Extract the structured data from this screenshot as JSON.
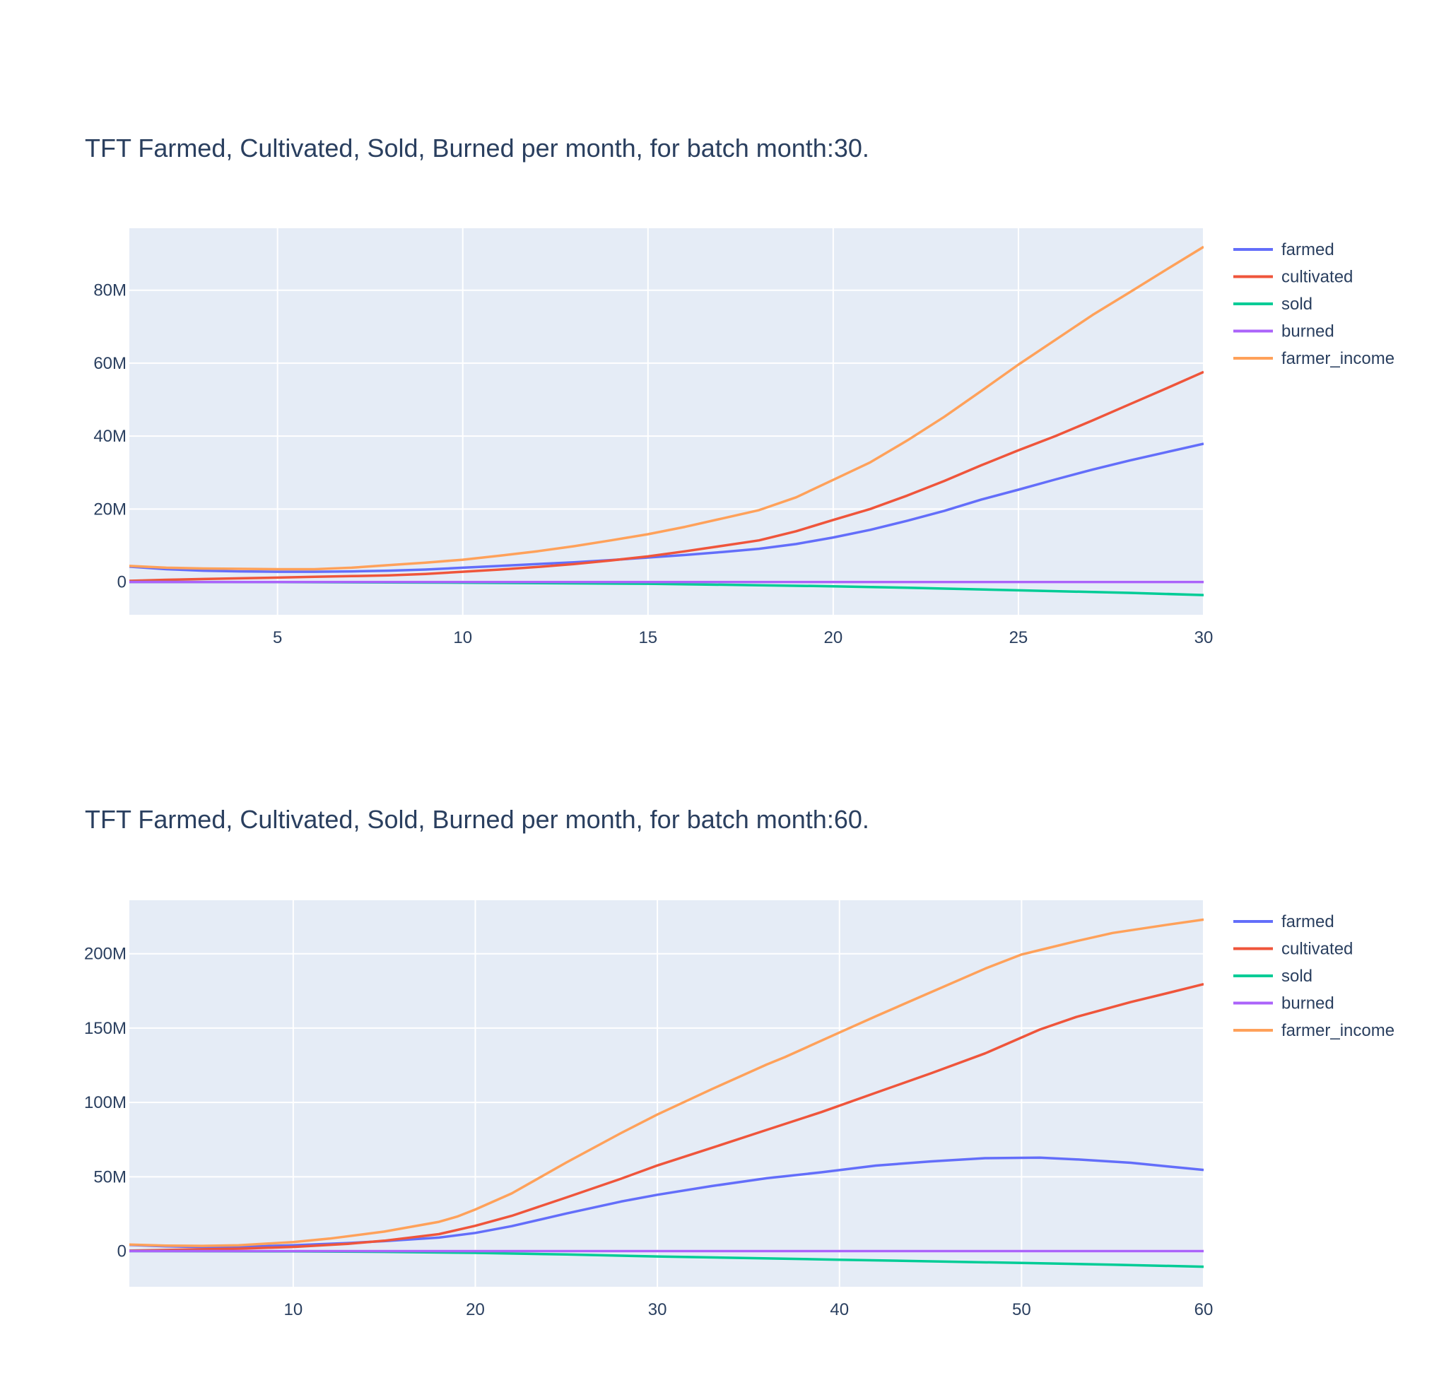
{
  "chart_data": [
    {
      "type": "line",
      "title": "TFT Farmed, Cultivated, Sold, Burned per month, for batch month:30.",
      "xlabel": "",
      "ylabel": "",
      "xlim": [
        1,
        30
      ],
      "ylim": [
        -9000000,
        97000000
      ],
      "xticks": [
        5,
        10,
        15,
        20,
        25,
        30
      ],
      "yticks": [
        0,
        20000000,
        40000000,
        60000000,
        80000000
      ],
      "ytick_labels": [
        "0",
        "20M",
        "40M",
        "60M",
        "80M"
      ],
      "legend": "top-right",
      "grid": true,
      "series": [
        {
          "name": "farmed",
          "color": "#636efa",
          "points": [
            [
              1,
              4200000
            ],
            [
              2,
              3500000
            ],
            [
              3,
              3100000
            ],
            [
              4,
              2900000
            ],
            [
              5,
              2800000
            ],
            [
              6,
              2800000
            ],
            [
              7,
              2900000
            ],
            [
              8,
              3100000
            ],
            [
              9,
              3400000
            ],
            [
              10,
              3900000
            ],
            [
              11,
              4400000
            ],
            [
              12,
              4900000
            ],
            [
              13,
              5400000
            ],
            [
              14,
              6000000
            ],
            [
              15,
              6700000
            ],
            [
              16,
              7400000
            ],
            [
              17,
              8200000
            ],
            [
              18,
              9100000
            ],
            [
              19,
              10400000
            ],
            [
              20,
              12200000
            ],
            [
              21,
              14300000
            ],
            [
              22,
              16800000
            ],
            [
              23,
              19500000
            ],
            [
              24,
              22600000
            ],
            [
              25,
              25300000
            ],
            [
              26,
              28100000
            ],
            [
              27,
              30800000
            ],
            [
              28,
              33300000
            ],
            [
              29,
              35600000
            ],
            [
              30,
              37900000
            ]
          ]
        },
        {
          "name": "cultivated",
          "color": "#ef553b",
          "points": [
            [
              1,
              300000
            ],
            [
              2,
              600000
            ],
            [
              3,
              800000
            ],
            [
              4,
              1000000
            ],
            [
              5,
              1200000
            ],
            [
              6,
              1400000
            ],
            [
              7,
              1600000
            ],
            [
              8,
              1800000
            ],
            [
              9,
              2200000
            ],
            [
              10,
              2800000
            ],
            [
              11,
              3400000
            ],
            [
              12,
              4100000
            ],
            [
              13,
              4900000
            ],
            [
              14,
              5900000
            ],
            [
              15,
              7000000
            ],
            [
              16,
              8400000
            ],
            [
              17,
              9900000
            ],
            [
              18,
              11400000
            ],
            [
              19,
              13900000
            ],
            [
              20,
              17000000
            ],
            [
              21,
              20000000
            ],
            [
              22,
              23700000
            ],
            [
              23,
              27700000
            ],
            [
              24,
              32000000
            ],
            [
              25,
              36100000
            ],
            [
              26,
              40000000
            ],
            [
              27,
              44300000
            ],
            [
              28,
              48700000
            ],
            [
              29,
              53100000
            ],
            [
              30,
              57600000
            ]
          ]
        },
        {
          "name": "sold",
          "color": "#00cc96",
          "points": [
            [
              1,
              0
            ],
            [
              5,
              -50000
            ],
            [
              10,
              -200000
            ],
            [
              15,
              -500000
            ],
            [
              18,
              -900000
            ],
            [
              20,
              -1200000
            ],
            [
              22,
              -1600000
            ],
            [
              25,
              -2300000
            ],
            [
              28,
              -3000000
            ],
            [
              30,
              -3600000
            ]
          ]
        },
        {
          "name": "burned",
          "color": "#ab63fa",
          "points": [
            [
              1,
              0
            ],
            [
              30,
              0
            ]
          ]
        },
        {
          "name": "farmer_income",
          "color": "#ffa15a",
          "points": [
            [
              1,
              4400000
            ],
            [
              2,
              3900000
            ],
            [
              3,
              3700000
            ],
            [
              4,
              3600000
            ],
            [
              5,
              3500000
            ],
            [
              6,
              3500000
            ],
            [
              7,
              3900000
            ],
            [
              8,
              4600000
            ],
            [
              9,
              5300000
            ],
            [
              10,
              6100000
            ],
            [
              11,
              7200000
            ],
            [
              12,
              8400000
            ],
            [
              13,
              9800000
            ],
            [
              14,
              11400000
            ],
            [
              15,
              13100000
            ],
            [
              16,
              15100000
            ],
            [
              17,
              17400000
            ],
            [
              18,
              19700000
            ],
            [
              19,
              23200000
            ],
            [
              20,
              28000000
            ],
            [
              21,
              32800000
            ],
            [
              22,
              38800000
            ],
            [
              23,
              45300000
            ],
            [
              24,
              52400000
            ],
            [
              25,
              59600000
            ],
            [
              26,
              66400000
            ],
            [
              27,
              73200000
            ],
            [
              28,
              79400000
            ],
            [
              29,
              85700000
            ],
            [
              30,
              91900000
            ]
          ]
        }
      ]
    },
    {
      "type": "line",
      "title": "TFT Farmed, Cultivated, Sold, Burned per month, for batch month:60.",
      "xlabel": "",
      "ylabel": "",
      "xlim": [
        1,
        60
      ],
      "ylim": [
        -24000000,
        236000000
      ],
      "xticks": [
        10,
        20,
        30,
        40,
        50,
        60
      ],
      "yticks": [
        0,
        50000000,
        100000000,
        150000000,
        200000000
      ],
      "ytick_labels": [
        "0",
        "50M",
        "100M",
        "150M",
        "200M"
      ],
      "legend": "top-right",
      "grid": true,
      "series": [
        {
          "name": "farmed",
          "color": "#636efa",
          "points": [
            [
              1,
              4200000
            ],
            [
              3,
              3200000
            ],
            [
              5,
              2800000
            ],
            [
              7,
              2900000
            ],
            [
              10,
              3900000
            ],
            [
              13,
              5400000
            ],
            [
              15,
              6700000
            ],
            [
              18,
              9100000
            ],
            [
              20,
              12200000
            ],
            [
              22,
              16800000
            ],
            [
              25,
              25300000
            ],
            [
              28,
              33300000
            ],
            [
              30,
              37900000
            ],
            [
              33,
              43800000
            ],
            [
              36,
              49000000
            ],
            [
              39,
              53000000
            ],
            [
              42,
              57500000
            ],
            [
              45,
              60300000
            ],
            [
              48,
              62500000
            ],
            [
              51,
              62900000
            ],
            [
              53,
              61700000
            ],
            [
              56,
              59400000
            ],
            [
              58,
              57000000
            ],
            [
              60,
              54600000
            ]
          ]
        },
        {
          "name": "cultivated",
          "color": "#ef553b",
          "points": [
            [
              1,
              300000
            ],
            [
              4,
              1000000
            ],
            [
              7,
              1600000
            ],
            [
              10,
              2800000
            ],
            [
              13,
              4900000
            ],
            [
              15,
              7000000
            ],
            [
              18,
              11400000
            ],
            [
              20,
              17000000
            ],
            [
              22,
              23700000
            ],
            [
              25,
              36100000
            ],
            [
              28,
              48700000
            ],
            [
              30,
              57600000
            ],
            [
              33,
              69500000
            ],
            [
              36,
              81500000
            ],
            [
              39,
              93500000
            ],
            [
              42,
              106500000
            ],
            [
              45,
              119500000
            ],
            [
              48,
              133000000
            ],
            [
              51,
              149000000
            ],
            [
              53,
              157500000
            ],
            [
              56,
              167500000
            ],
            [
              58,
              173500000
            ],
            [
              60,
              179600000
            ]
          ]
        },
        {
          "name": "sold",
          "color": "#00cc96",
          "points": [
            [
              1,
              0
            ],
            [
              10,
              -200000
            ],
            [
              15,
              -500000
            ],
            [
              20,
              -1200000
            ],
            [
              25,
              -2300000
            ],
            [
              30,
              -3600000
            ],
            [
              35,
              -4700000
            ],
            [
              40,
              -5800000
            ],
            [
              45,
              -6900000
            ],
            [
              50,
              -8000000
            ],
            [
              55,
              -9100000
            ],
            [
              60,
              -10500000
            ]
          ]
        },
        {
          "name": "burned",
          "color": "#ab63fa",
          "points": [
            [
              1,
              0
            ],
            [
              60,
              0
            ]
          ]
        },
        {
          "name": "farmer_income",
          "color": "#ffa15a",
          "points": [
            [
              1,
              4400000
            ],
            [
              3,
              3700000
            ],
            [
              5,
              3500000
            ],
            [
              7,
              3900000
            ],
            [
              10,
              6100000
            ],
            [
              12,
              8400000
            ],
            [
              15,
              13100000
            ],
            [
              18,
              19700000
            ],
            [
              19,
              23200000
            ],
            [
              20,
              28000000
            ],
            [
              22,
              38800000
            ],
            [
              25,
              59600000
            ],
            [
              28,
              79400000
            ],
            [
              30,
              91900000
            ],
            [
              33,
              109000000
            ],
            [
              36,
              125500000
            ],
            [
              37,
              130500000
            ],
            [
              40,
              147000000
            ],
            [
              42,
              158000000
            ],
            [
              45,
              174000000
            ],
            [
              48,
              190000000
            ],
            [
              50,
              199500000
            ],
            [
              51,
              202500000
            ],
            [
              53,
              208500000
            ],
            [
              55,
              214000000
            ],
            [
              58,
              219500000
            ],
            [
              60,
              223000000
            ]
          ]
        }
      ]
    }
  ]
}
